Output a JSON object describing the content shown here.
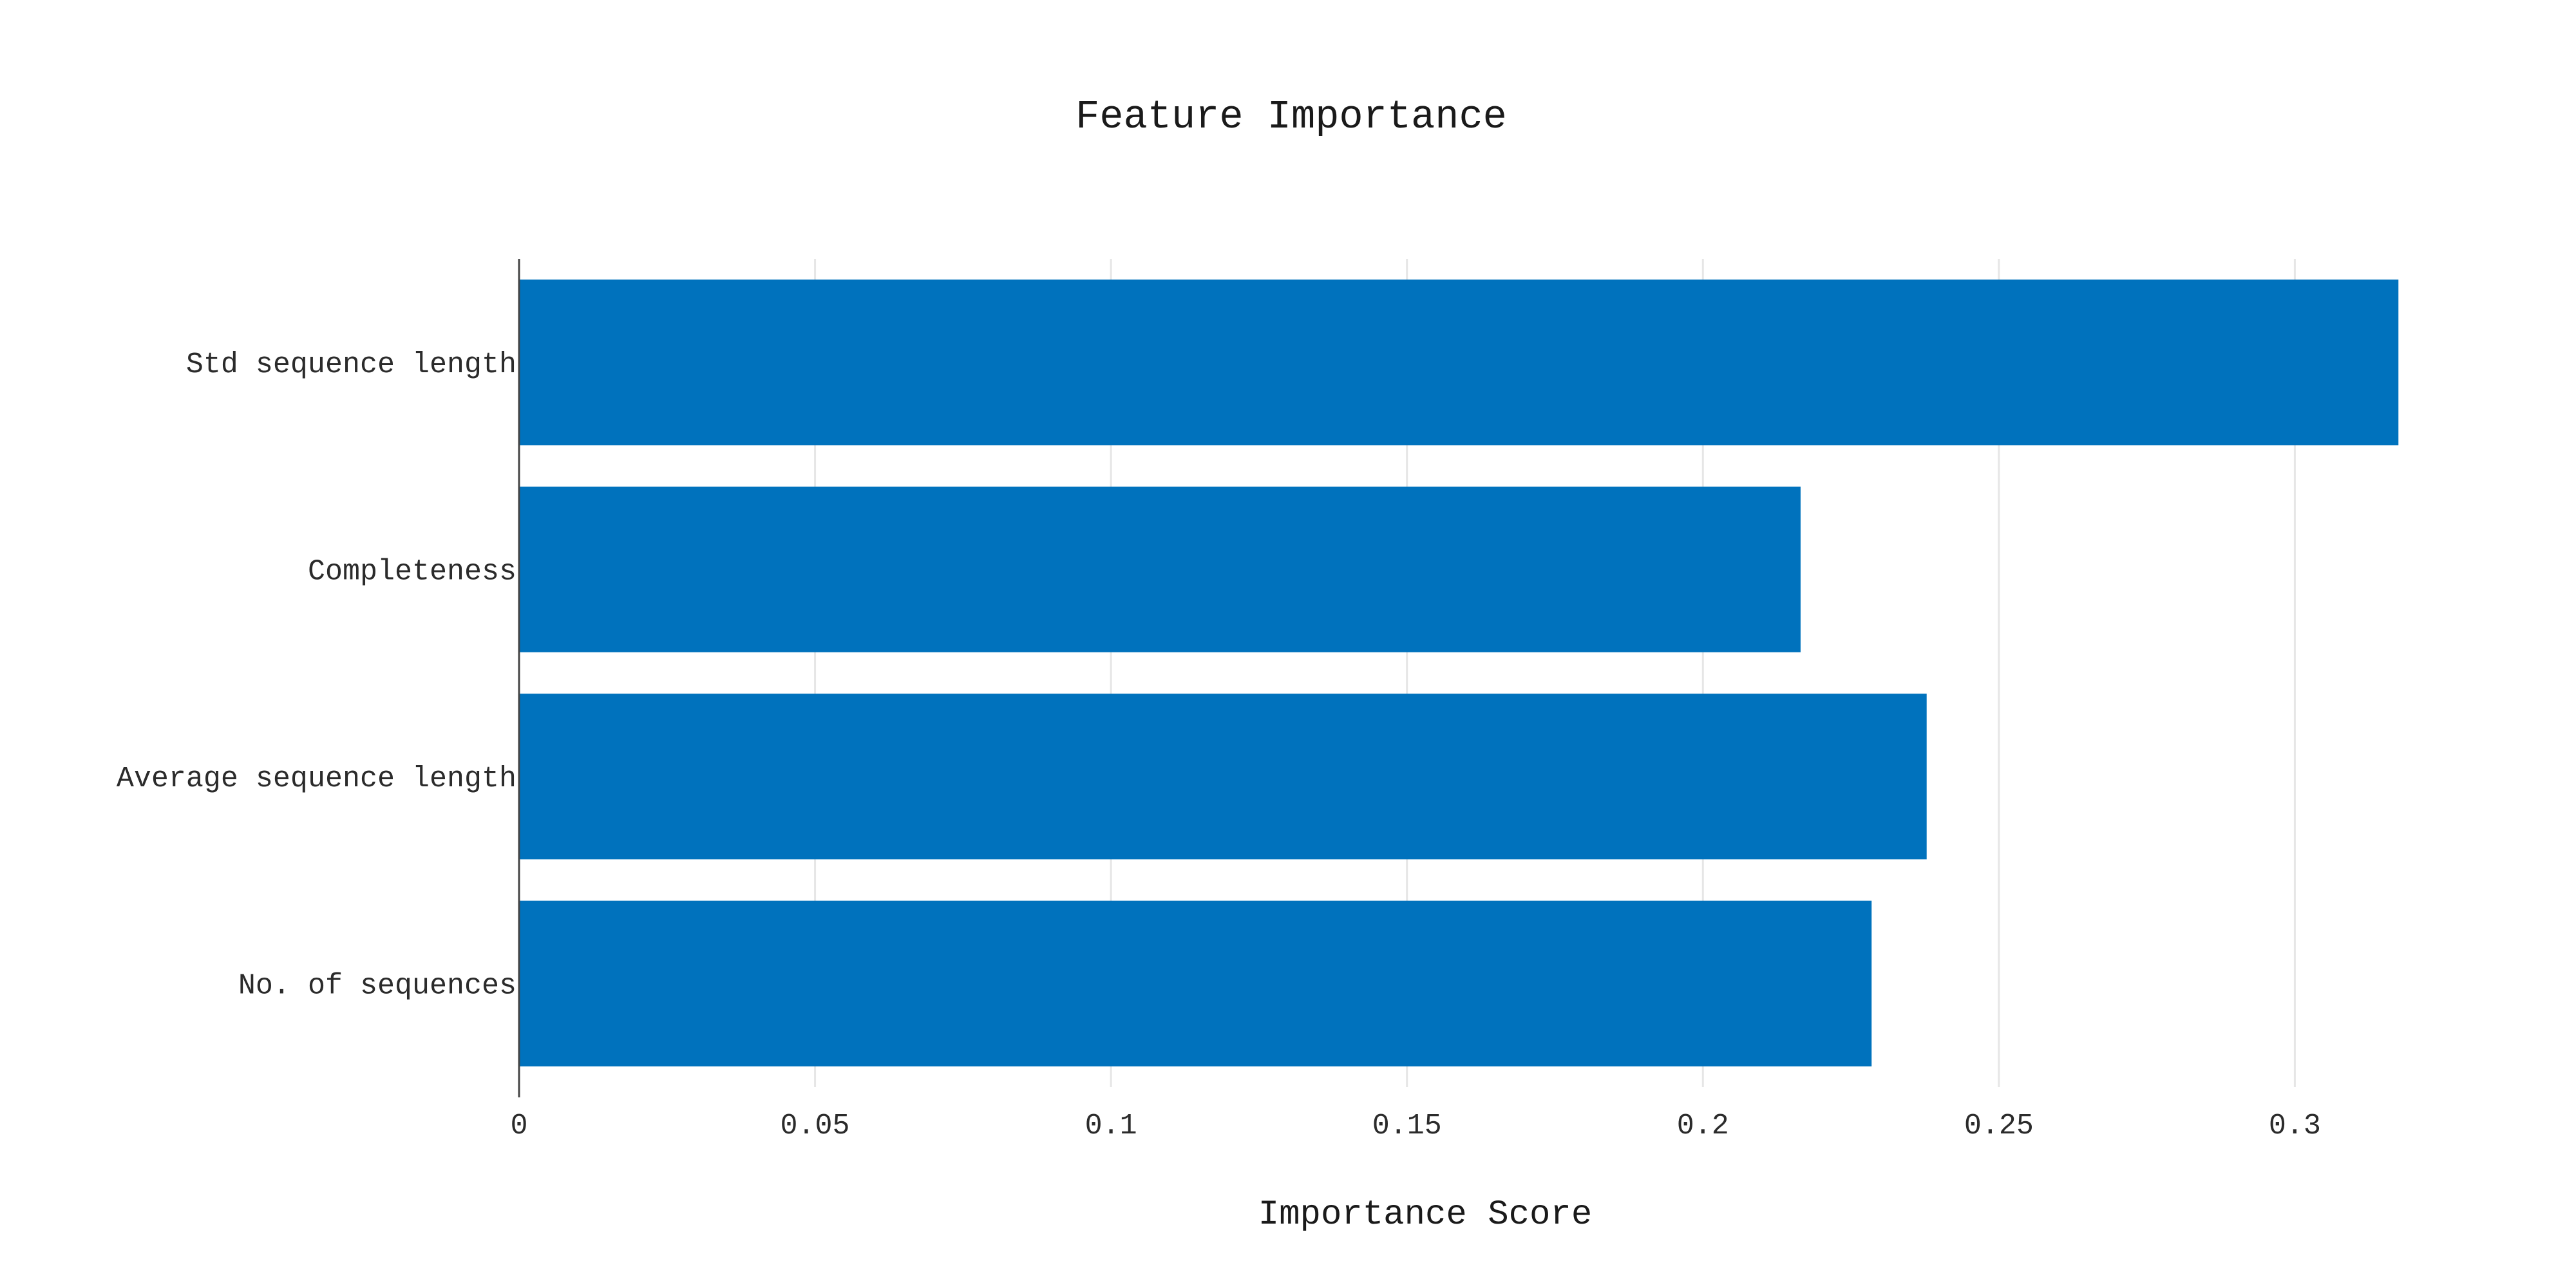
{
  "chart_data": {
    "type": "bar",
    "orientation": "horizontal",
    "title": "Feature Importance",
    "xlabel": "Importance Score",
    "ylabel": "",
    "categories": [
      "Std sequence length",
      "Completeness",
      "Average sequence length",
      "No. of sequences"
    ],
    "values": [
      0.3175,
      0.2165,
      0.2378,
      0.2285
    ],
    "xlim": [
      0,
      0.3475
    ],
    "xticks": [
      {
        "value": 0,
        "label": "0"
      },
      {
        "value": 0.05,
        "label": "0.05"
      },
      {
        "value": 0.1,
        "label": "0.1"
      },
      {
        "value": 0.15,
        "label": "0.15"
      },
      {
        "value": 0.2,
        "label": "0.2"
      },
      {
        "value": 0.25,
        "label": "0.25"
      },
      {
        "value": 0.3,
        "label": "0.3"
      }
    ],
    "grid": true,
    "legend": "none",
    "bar_color": "#0072bd"
  }
}
